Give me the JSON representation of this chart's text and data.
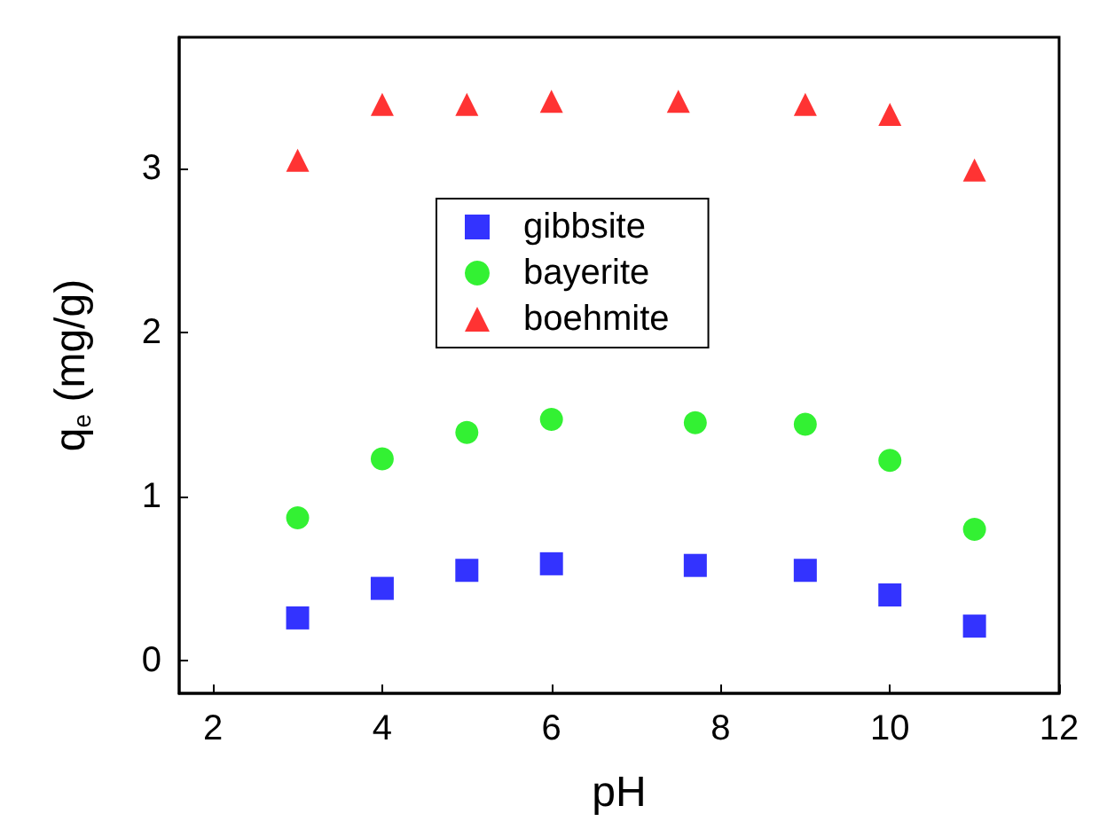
{
  "chart_data": {
    "type": "scatter",
    "xlabel": "pH",
    "ylabel": "q$_{e}$ (mg/g)",
    "xlim": [
      1.6,
      12
    ],
    "xticks": [
      2,
      4,
      6,
      8,
      10,
      12
    ],
    "ylim": [
      -0.2,
      3.8
    ],
    "yticks": [
      0,
      1,
      2,
      3
    ],
    "grid": false,
    "legend": "top",
    "series": [
      {
        "name": "gibbsite",
        "color": "#0000ff",
        "marker": "square",
        "x": [
          3,
          4,
          5,
          6,
          7.7,
          9,
          10,
          11
        ],
        "values": [
          0.26,
          0.44,
          0.55,
          0.59,
          0.58,
          0.55,
          0.4,
          0.21
        ]
      },
      {
        "name": "bayerite",
        "color": "#00ee00",
        "marker": "circle",
        "x": [
          3,
          4,
          5,
          6,
          7.7,
          9,
          10,
          11
        ],
        "values": [
          0.87,
          1.23,
          1.39,
          1.47,
          1.45,
          1.44,
          1.22,
          0.8
        ]
      },
      {
        "name": "boehmite",
        "color": "#ff0000",
        "marker": "triangle",
        "x": [
          3,
          4,
          5,
          6,
          7.5,
          9,
          10,
          11
        ],
        "values": [
          3.05,
          3.39,
          3.39,
          3.41,
          3.41,
          3.39,
          3.33,
          2.99
        ]
      }
    ]
  }
}
